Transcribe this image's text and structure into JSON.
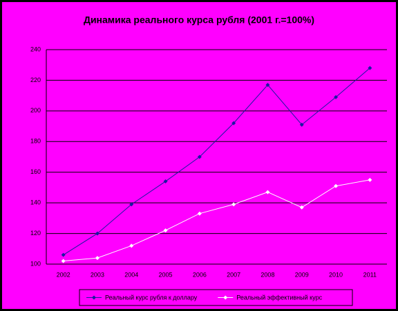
{
  "chart_data": {
    "type": "line",
    "title": "Динамика реального курса рубля (2001 г.=100%)",
    "categories": [
      "2002",
      "2003",
      "2004",
      "2005",
      "2006",
      "2007",
      "2008",
      "2009",
      "2010",
      "2011"
    ],
    "series": [
      {
        "name": "Реальный курс рубля к доллару",
        "color": "#1a1aa0",
        "values": [
          106,
          120,
          139,
          154,
          170,
          192,
          217,
          191,
          209,
          228
        ]
      },
      {
        "name": "Реальный эффективный курс",
        "color": "#ffffff",
        "values": [
          102,
          104,
          112,
          122,
          133,
          139,
          147,
          137,
          151,
          155
        ]
      }
    ],
    "ylim": [
      100,
      240
    ],
    "yticks": [
      100,
      120,
      140,
      160,
      180,
      200,
      220,
      240
    ],
    "grid": true
  }
}
